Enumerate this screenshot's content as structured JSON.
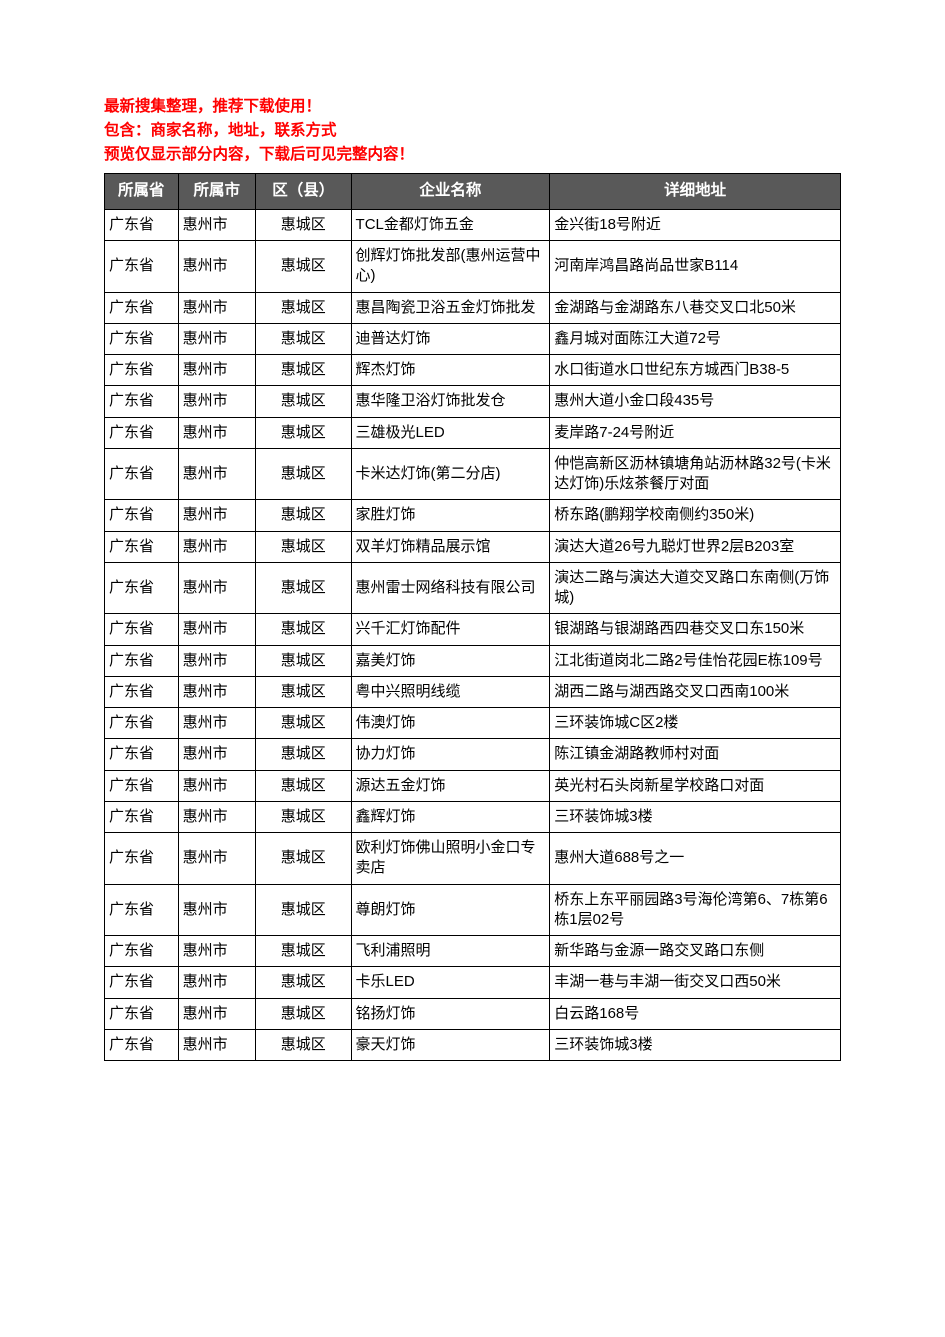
{
  "intro": {
    "line1": "最新搜集整理，推荐下载使用！",
    "line2": "包含：商家名称，地址，联系方式",
    "line3": "预览仅显示部分内容，下载后可见完整内容！",
    "text_color": "#ff0000"
  },
  "table": {
    "header_bg": "#595959",
    "header_color": "#ffffff",
    "border_color": "#000000",
    "columns": [
      "所属省",
      "所属市",
      "区（县）",
      "企业名称",
      "详细地址"
    ],
    "rows": [
      [
        "广东省",
        "惠州市",
        "惠城区",
        "TCL金都灯饰五金",
        "金兴街18号附近"
      ],
      [
        "广东省",
        "惠州市",
        "惠城区",
        "创辉灯饰批发部(惠州运营中心)",
        "河南岸鸿昌路尚品世家B114"
      ],
      [
        "广东省",
        "惠州市",
        "惠城区",
        "惠昌陶瓷卫浴五金灯饰批发",
        "金湖路与金湖路东八巷交叉口北50米"
      ],
      [
        "广东省",
        "惠州市",
        "惠城区",
        "迪普达灯饰",
        "鑫月城对面陈江大道72号"
      ],
      [
        "广东省",
        "惠州市",
        "惠城区",
        "辉杰灯饰",
        "水口街道水口世纪东方城西门B38-5"
      ],
      [
        "广东省",
        "惠州市",
        "惠城区",
        "惠华隆卫浴灯饰批发仓",
        "惠州大道小金口段435号"
      ],
      [
        "广东省",
        "惠州市",
        "惠城区",
        "三雄极光LED",
        "麦岸路7-24号附近"
      ],
      [
        "广东省",
        "惠州市",
        "惠城区",
        "卡米达灯饰(第二分店)",
        "仲恺高新区沥林镇塘角站沥林路32号(卡米达灯饰)乐炫茶餐厅对面"
      ],
      [
        "广东省",
        "惠州市",
        "惠城区",
        "家胜灯饰",
        "桥东路(鹏翔学校南侧约350米)"
      ],
      [
        "广东省",
        "惠州市",
        "惠城区",
        "双羊灯饰精品展示馆",
        "演达大道26号九聪灯世界2层B203室"
      ],
      [
        "广东省",
        "惠州市",
        "惠城区",
        "惠州雷士网络科技有限公司",
        "演达二路与演达大道交叉路口东南侧(万饰城)"
      ],
      [
        "广东省",
        "惠州市",
        "惠城区",
        "兴千汇灯饰配件",
        "银湖路与银湖路西四巷交叉口东150米"
      ],
      [
        "广东省",
        "惠州市",
        "惠城区",
        "嘉美灯饰",
        "江北街道岗北二路2号佳怡花园E栋109号"
      ],
      [
        "广东省",
        "惠州市",
        "惠城区",
        "粤中兴照明线缆",
        "湖西二路与湖西路交叉口西南100米"
      ],
      [
        "广东省",
        "惠州市",
        "惠城区",
        "伟澳灯饰",
        "三环装饰城C区2楼"
      ],
      [
        "广东省",
        "惠州市",
        "惠城区",
        "协力灯饰",
        "陈江镇金湖路教师村对面"
      ],
      [
        "广东省",
        "惠州市",
        "惠城区",
        "源达五金灯饰",
        "英光村石头岗新星学校路口对面"
      ],
      [
        "广东省",
        "惠州市",
        "惠城区",
        "鑫辉灯饰",
        "三环装饰城3楼"
      ],
      [
        "广东省",
        "惠州市",
        "惠城区",
        "欧利灯饰佛山照明小金口专卖店",
        "惠州大道688号之一"
      ],
      [
        "广东省",
        "惠州市",
        "惠城区",
        "尊朗灯饰",
        "桥东上东平丽园路3号海伦湾第6、7栋第6栋1层02号"
      ],
      [
        "广东省",
        "惠州市",
        "惠城区",
        "飞利浦照明",
        "新华路与金源一路交叉路口东侧"
      ],
      [
        "广东省",
        "惠州市",
        "惠城区",
        "卡乐LED",
        "丰湖一巷与丰湖一街交叉口西50米"
      ],
      [
        "广东省",
        "惠州市",
        "惠城区",
        "铭扬灯饰",
        "白云路168号"
      ],
      [
        "广东省",
        "惠州市",
        "惠城区",
        "豪天灯饰",
        "三环装饰城3楼"
      ]
    ]
  }
}
